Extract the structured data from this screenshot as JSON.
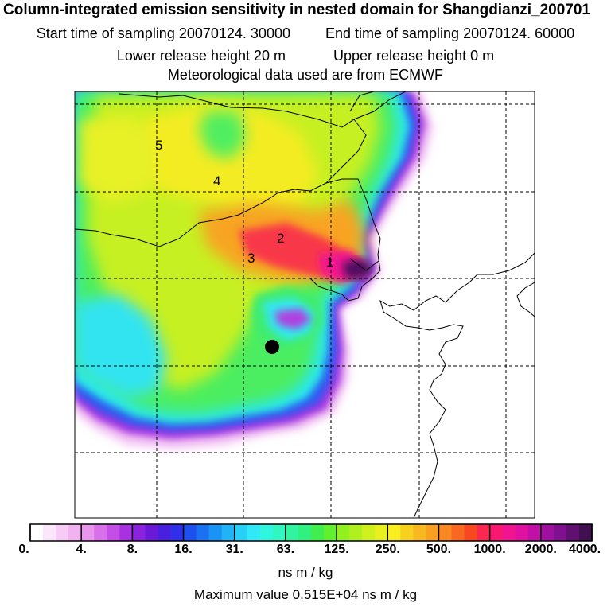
{
  "header": {
    "title": "Column-integrated emission sensitivity in nested domain for Shangdianzi_200701",
    "start_time": "Start time of sampling 20070124. 30000",
    "end_time": "End time of sampling 20070124. 60000",
    "lower_release": "Lower release height   20 m",
    "upper_release": "Upper release height    0 m",
    "met_data": "Meteorological data used are from ECMWF"
  },
  "map": {
    "numeric_labels": [
      "5",
      "4",
      "2",
      "3",
      "1"
    ],
    "station_marker": "receptor-dot",
    "grid": "dashed"
  },
  "colorbar": {
    "tick_labels": [
      "0.",
      "4.",
      "8.",
      "16.",
      "31.",
      "63.",
      "125.",
      "250.",
      "500.",
      "1000.",
      "2000.",
      "4000."
    ],
    "colors": [
      "#ffffff",
      "#fbe6fb",
      "#f6ccf6",
      "#f0b3f0",
      "#e895ee",
      "#d870ea",
      "#c44ee6",
      "#a832e2",
      "#8a22de",
      "#6a1ad6",
      "#4a20e0",
      "#3030ea",
      "#1e50f0",
      "#1a72f2",
      "#1a94f4",
      "#20b4f6",
      "#28d0f8",
      "#30e8f6",
      "#30f6e0",
      "#30f6c0",
      "#30f4a0",
      "#30f080",
      "#40ee50",
      "#60f030",
      "#90f020",
      "#b0f020",
      "#d0f020",
      "#e8f020",
      "#f8ee20",
      "#f8d020",
      "#f8b820",
      "#f8a020",
      "#f88820",
      "#f86820",
      "#f84820",
      "#f82850",
      "#f81870",
      "#f01490",
      "#e010a0",
      "#c010a8",
      "#a010a0",
      "#801090",
      "#601070",
      "#401050"
    ],
    "unit": "ns m / kg",
    "max_value": "Maximum value  0.515E+04 ns m / kg"
  }
}
